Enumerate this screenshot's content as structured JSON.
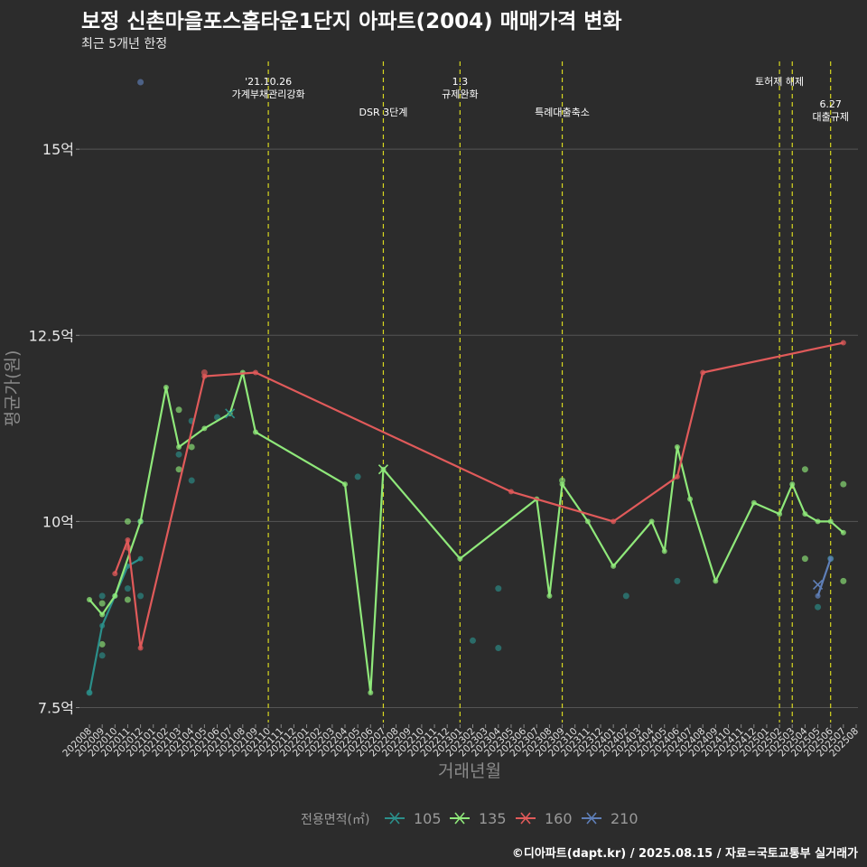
{
  "header": {
    "title": "보정 신촌마을포스홈타운1단지 아파트(2004) 매매가격 변화",
    "subtitle": "최근 5개년 한정"
  },
  "footer": {
    "credit": "©디아파트(dapt.kr) / 2025.08.15 / 자료=국토교통부 실거래가"
  },
  "colors": {
    "background": "#2c2c2c",
    "grid": "#555555",
    "event_line": "#d8d820",
    "s105": "#2b8f8a",
    "s135": "#8fe87a",
    "s160": "#e05a5a",
    "s210": "#5f7fb8"
  },
  "chart_data": {
    "type": "line",
    "title": "보정 신촌마을포스홈타운1단지 아파트(2004) 매매가격 변화",
    "subtitle": "최근 5개년 한정",
    "xlabel": "거래년월",
    "ylabel": "평균가(원)",
    "ylim": [
      7.3,
      16.3
    ],
    "y_ticks": [
      7.5,
      10,
      12.5,
      15
    ],
    "y_tick_labels": [
      "7.5억",
      "10억",
      "12.5억",
      "15억"
    ],
    "x_ticks": [
      "202008",
      "202009",
      "202010",
      "202011",
      "202012",
      "202101",
      "202102",
      "202103",
      "202104",
      "202105",
      "202106",
      "202107",
      "202108",
      "202109",
      "202110",
      "202111",
      "202112",
      "202201",
      "202202",
      "202203",
      "202204",
      "202205",
      "202206",
      "202207",
      "202208",
      "202209",
      "202210",
      "202211",
      "202212",
      "202301",
      "202302",
      "202303",
      "202304",
      "202305",
      "202306",
      "202307",
      "202308",
      "202309",
      "202310",
      "202311",
      "202312",
      "202401",
      "202402",
      "202403",
      "202404",
      "202405",
      "202406",
      "202407",
      "202408",
      "202409",
      "202410",
      "202411",
      "202412",
      "202501",
      "202502",
      "202503",
      "202504",
      "202505",
      "202506",
      "202507",
      "202508"
    ],
    "grid": true,
    "legend": {
      "title": "전용면적(㎡)",
      "position": "bottom",
      "entries": [
        "105",
        "135",
        "160",
        "210"
      ]
    },
    "events": [
      {
        "x": "202110",
        "label": "'21.10.26\n가계부채관리강화",
        "row": 0
      },
      {
        "x": "202207",
        "label": "DSR 3단계",
        "row": 1
      },
      {
        "x": "202301",
        "label": "1.3\n규제완화",
        "row": 0
      },
      {
        "x": "202309",
        "label": "특례대출축소",
        "row": 1
      },
      {
        "x": "202502",
        "label": "토허제 해제",
        "row": 0
      },
      {
        "x": "202503",
        "label": "",
        "row": 0
      },
      {
        "x": "202506",
        "label": "6.27\n대출규제",
        "row": 2
      }
    ],
    "series": [
      {
        "name": "105",
        "line": [
          [
            "202008",
            7.7
          ],
          [
            "202009",
            8.6
          ],
          [
            "202010",
            9.0
          ],
          [
            "202011",
            9.4
          ],
          [
            "202012",
            9.5
          ]
        ],
        "points": [
          [
            "202008",
            7.7
          ],
          [
            "202009",
            8.2
          ],
          [
            "202009",
            9.0
          ],
          [
            "202011",
            9.1
          ],
          [
            "202012",
            9.0
          ],
          [
            "202012",
            10.0
          ],
          [
            "202103",
            10.9
          ],
          [
            "202104",
            10.55
          ],
          [
            "202104",
            11.35
          ],
          [
            "202106",
            11.4
          ],
          [
            "202205",
            10.6
          ],
          [
            "202302",
            8.4
          ],
          [
            "202304",
            8.3
          ],
          [
            "202304",
            9.1
          ],
          [
            "202402",
            9.0
          ],
          [
            "202406",
            9.2
          ],
          [
            "202505",
            8.85
          ],
          [
            "202506",
            9.5
          ]
        ],
        "markers": [
          [
            "202107",
            11.45
          ]
        ]
      },
      {
        "name": "135",
        "line": [
          [
            "202008",
            8.95
          ],
          [
            "202009",
            8.75
          ],
          [
            "202010",
            9.0
          ],
          [
            "202012",
            10.0
          ],
          [
            "202102",
            11.8
          ],
          [
            "202103",
            11.0
          ],
          [
            "202105",
            11.25
          ],
          [
            "202107",
            11.45
          ],
          [
            "202108",
            12.0
          ],
          [
            "202109",
            11.2
          ],
          [
            "202204",
            10.5
          ],
          [
            "202206",
            7.7
          ],
          [
            "202207",
            10.7
          ],
          [
            "202301",
            9.5
          ],
          [
            "202307",
            10.3
          ],
          [
            "202308",
            9.0
          ],
          [
            "202309",
            10.5
          ],
          [
            "202311",
            10.0
          ],
          [
            "202401",
            9.4
          ],
          [
            "202404",
            10.0
          ],
          [
            "202405",
            9.6
          ],
          [
            "202406",
            11.0
          ],
          [
            "202407",
            10.3
          ],
          [
            "202409",
            9.2
          ],
          [
            "202412",
            10.25
          ],
          [
            "202502",
            10.1
          ],
          [
            "202503",
            10.5
          ],
          [
            "202504",
            10.1
          ],
          [
            "202505",
            10.0
          ],
          [
            "202506",
            10.0
          ],
          [
            "202507",
            9.85
          ]
        ],
        "points": [
          [
            "202009",
            8.35
          ],
          [
            "202009",
            8.9
          ],
          [
            "202011",
            8.95
          ],
          [
            "202011",
            10.0
          ],
          [
            "202103",
            11.5
          ],
          [
            "202103",
            10.7
          ],
          [
            "202104",
            11.0
          ],
          [
            "202309",
            10.55
          ],
          [
            "202504",
            10.7
          ],
          [
            "202504",
            9.5
          ],
          [
            "202507",
            10.5
          ],
          [
            "202507",
            9.2
          ]
        ],
        "markers": [
          [
            "202207",
            10.7
          ]
        ]
      },
      {
        "name": "160",
        "line": [
          [
            "202010",
            9.3
          ],
          [
            "202011",
            9.75
          ],
          [
            "202012",
            8.3
          ],
          [
            "202105",
            11.95
          ],
          [
            "202109",
            12.0
          ],
          [
            "202305",
            10.4
          ],
          [
            "202401",
            10.0
          ],
          [
            "202406",
            10.6
          ],
          [
            "202408",
            12.0
          ],
          [
            "202507",
            12.4
          ]
        ],
        "points": [
          [
            "202011",
            9.65
          ],
          [
            "202105",
            12.0
          ]
        ],
        "markers": []
      },
      {
        "name": "210",
        "line": [
          [
            "202505",
            9.0
          ],
          [
            "202506",
            9.5
          ]
        ],
        "points": [
          [
            "202012",
            15.9
          ]
        ],
        "markers": [
          [
            "202505",
            9.15
          ]
        ]
      }
    ]
  }
}
